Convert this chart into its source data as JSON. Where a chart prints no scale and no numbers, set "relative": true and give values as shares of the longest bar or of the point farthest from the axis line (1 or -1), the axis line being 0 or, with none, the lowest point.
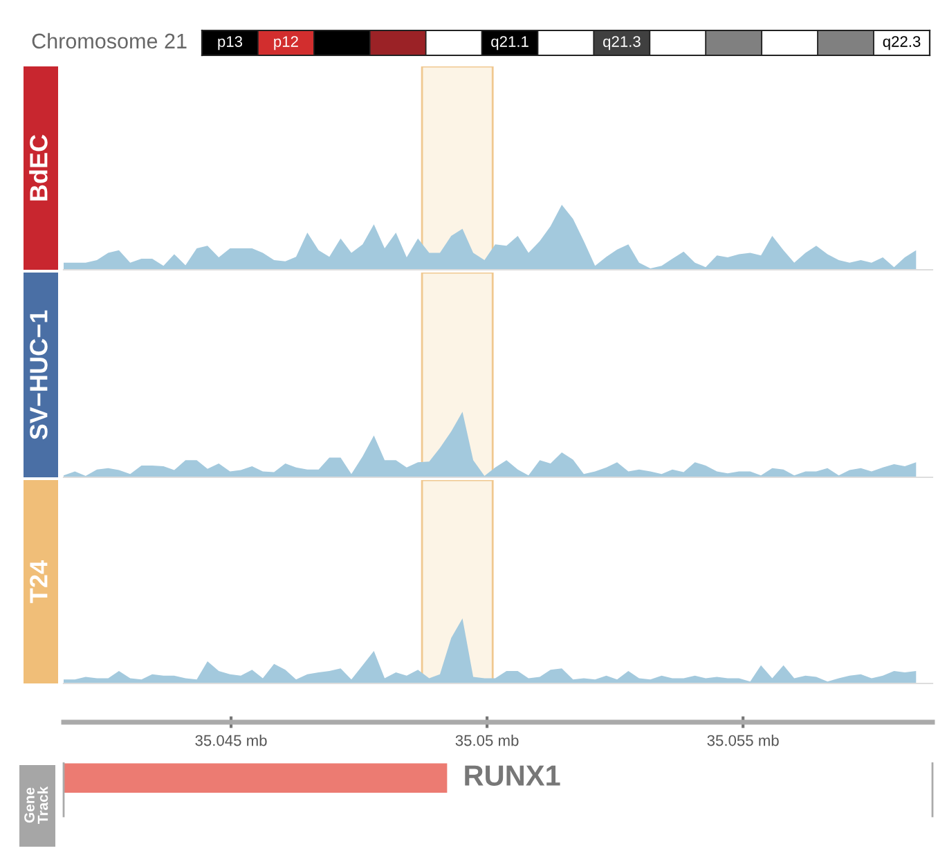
{
  "chart_data": [
    {
      "type": "other",
      "ylabel": "Chromosome 21",
      "categories": [
        "p13",
        "p12",
        null,
        null,
        null,
        "q21.1",
        null,
        "q21.3",
        null,
        null,
        null,
        null,
        "q22.3"
      ],
      "colors": [
        "#000000",
        "#d22e2e",
        "#000000",
        "#9b2226",
        "#ffffff",
        "#000000",
        "#ffffff",
        "#404040",
        "#ffffff",
        "#808080",
        "#ffffff",
        "#808080",
        "#ffffff"
      ]
    },
    {
      "type": "area",
      "relative": true,
      "tick_labels": false,
      "xlim": [
        35.04173,
        35.0587
      ],
      "x": [
        35.04173,
        35.04195,
        35.04216,
        35.04238,
        35.0426,
        35.04281,
        35.04303,
        35.04325,
        35.04346,
        35.04368,
        35.04389,
        35.04411,
        35.04433,
        35.04454,
        35.04476,
        35.04498,
        35.04519,
        35.04541,
        35.04562,
        35.04584,
        35.04606,
        35.04627,
        35.04649,
        35.04671,
        35.04692,
        35.04714,
        35.04735,
        35.04757,
        35.04779,
        35.048,
        35.04822,
        35.04843,
        35.04865,
        35.04887,
        35.04908,
        35.0493,
        35.04952,
        35.04973,
        35.04995,
        35.05016,
        35.05038,
        35.0506,
        35.05081,
        35.05103,
        35.05124,
        35.05146,
        35.05168,
        35.05189,
        35.05211,
        35.05233,
        35.05254,
        35.05276,
        35.05297,
        35.05319,
        35.05341,
        35.05362,
        35.05384,
        35.05406,
        35.05427,
        35.05449,
        35.0547,
        35.05492,
        35.05514,
        35.05535,
        35.05557,
        35.05579,
        35.056,
        35.05622,
        35.05643,
        35.05665,
        35.05687,
        35.05708,
        35.0573,
        35.05751,
        35.05773,
        35.05795,
        35.05816,
        35.05838
      ],
      "series": [
        {
          "name": "BdEC",
          "color": "#a3c9dd",
          "values": [
            0.11,
            0.11,
            0.11,
            0.15,
            0.26,
            0.3,
            0.11,
            0.17,
            0.17,
            0.06,
            0.24,
            0.07,
            0.33,
            0.37,
            0.19,
            0.33,
            0.33,
            0.33,
            0.26,
            0.15,
            0.13,
            0.2,
            0.57,
            0.3,
            0.2,
            0.48,
            0.26,
            0.39,
            0.7,
            0.33,
            0.57,
            0.19,
            0.48,
            0.26,
            0.26,
            0.52,
            0.63,
            0.26,
            0.15,
            0.39,
            0.37,
            0.52,
            0.26,
            0.44,
            0.67,
            1,
            0.78,
            0.44,
            0.06,
            0.2,
            0.31,
            0.39,
            0.11,
            0.02,
            0.06,
            0.17,
            0.28,
            0.11,
            0.04,
            0.22,
            0.19,
            0.24,
            0.26,
            0.22,
            0.52,
            0.3,
            0.11,
            0.26,
            0.37,
            0.24,
            0.15,
            0.11,
            0.15,
            0.11,
            0.19,
            0.04,
            0.19,
            0.3
          ]
        }
      ],
      "bands": [
        {
          "axis": "x",
          "from": 35.04873,
          "to": 35.05011,
          "color": "#fcf4e6"
        }
      ]
    },
    {
      "type": "area",
      "relative": true,
      "tick_labels": false,
      "xlim": [
        35.04173,
        35.0587
      ],
      "x": [
        35.04173,
        35.04195,
        35.04216,
        35.04238,
        35.0426,
        35.04281,
        35.04303,
        35.04325,
        35.04346,
        35.04368,
        35.04389,
        35.04411,
        35.04433,
        35.04454,
        35.04476,
        35.04498,
        35.04519,
        35.04541,
        35.04562,
        35.04584,
        35.04606,
        35.04627,
        35.04649,
        35.04671,
        35.04692,
        35.04714,
        35.04735,
        35.04757,
        35.04779,
        35.048,
        35.04822,
        35.04843,
        35.04865,
        35.04887,
        35.04908,
        35.0493,
        35.04952,
        35.04973,
        35.04995,
        35.05016,
        35.05038,
        35.0506,
        35.05081,
        35.05103,
        35.05124,
        35.05146,
        35.05168,
        35.05189,
        35.05211,
        35.05233,
        35.05254,
        35.05276,
        35.05297,
        35.05319,
        35.05341,
        35.05362,
        35.05384,
        35.05406,
        35.05427,
        35.05449,
        35.0547,
        35.05492,
        35.05514,
        35.05535,
        35.05557,
        35.05579,
        35.056,
        35.05622,
        35.05643,
        35.05665,
        35.05687,
        35.05708,
        35.0573,
        35.05751,
        35.05773,
        35.05795,
        35.05816,
        35.05838
      ],
      "series": [
        {
          "name": "SV−HUC−1",
          "color": "#a3c9dd",
          "values": [
            0.03,
            0.09,
            0.02,
            0.12,
            0.14,
            0.11,
            0.05,
            0.18,
            0.18,
            0.17,
            0.11,
            0.26,
            0.26,
            0.13,
            0.21,
            0.09,
            0.11,
            0.17,
            0.09,
            0.08,
            0.21,
            0.15,
            0.12,
            0.12,
            0.3,
            0.3,
            0.05,
            0.32,
            0.64,
            0.26,
            0.26,
            0.15,
            0.23,
            0.24,
            0.45,
            0.7,
            1,
            0.26,
            0.02,
            0.15,
            0.26,
            0.12,
            0.03,
            0.26,
            0.21,
            0.38,
            0.27,
            0.05,
            0.09,
            0.15,
            0.23,
            0.09,
            0.12,
            0.09,
            0.05,
            0.12,
            0.08,
            0.23,
            0.18,
            0.09,
            0.06,
            0.09,
            0.09,
            0.03,
            0.14,
            0.12,
            0.03,
            0.09,
            0.09,
            0.14,
            0.03,
            0.11,
            0.14,
            0.09,
            0.15,
            0.2,
            0.17,
            0.23
          ]
        }
      ],
      "bands": [
        {
          "axis": "x",
          "from": 35.04873,
          "to": 35.05011,
          "color": "#fcf4e6"
        }
      ]
    },
    {
      "type": "area",
      "relative": true,
      "tick_labels": false,
      "xlim": [
        35.04173,
        35.0587
      ],
      "x": [
        35.04173,
        35.04195,
        35.04216,
        35.04238,
        35.0426,
        35.04281,
        35.04303,
        35.04325,
        35.04346,
        35.04368,
        35.04389,
        35.04411,
        35.04433,
        35.04454,
        35.04476,
        35.04498,
        35.04519,
        35.04541,
        35.04562,
        35.04584,
        35.04606,
        35.04627,
        35.04649,
        35.04671,
        35.04692,
        35.04714,
        35.04735,
        35.04757,
        35.04779,
        35.048,
        35.04822,
        35.04843,
        35.04865,
        35.04887,
        35.04908,
        35.0493,
        35.04952,
        35.04973,
        35.04995,
        35.05016,
        35.05038,
        35.0506,
        35.05081,
        35.05103,
        35.05124,
        35.05146,
        35.05168,
        35.05189,
        35.05211,
        35.05233,
        35.05254,
        35.05276,
        35.05297,
        35.05319,
        35.05341,
        35.05362,
        35.05384,
        35.05406,
        35.05427,
        35.05449,
        35.0547,
        35.05492,
        35.05514,
        35.05535,
        35.05557,
        35.05579,
        35.056,
        35.05622,
        35.05643,
        35.05665,
        35.05687,
        35.05708,
        35.0573,
        35.05751,
        35.05773,
        35.05795,
        35.05816,
        35.05838
      ],
      "series": [
        {
          "name": "T24",
          "color": "#a3c9dd",
          "values": [
            0.06,
            0.06,
            0.1,
            0.08,
            0.08,
            0.19,
            0.08,
            0.06,
            0.14,
            0.12,
            0.12,
            0.08,
            0.06,
            0.34,
            0.19,
            0.14,
            0.12,
            0.21,
            0.08,
            0.3,
            0.21,
            0.06,
            0.14,
            0.17,
            0.19,
            0.23,
            0.06,
            0.28,
            0.5,
            0.08,
            0.17,
            0.12,
            0.21,
            0.08,
            0.14,
            0.7,
            1,
            0.1,
            0.08,
            0.08,
            0.19,
            0.19,
            0.08,
            0.1,
            0.21,
            0.23,
            0.06,
            0.08,
            0.06,
            0.12,
            0.06,
            0.19,
            0.08,
            0.06,
            0.12,
            0.08,
            0.08,
            0.12,
            0.08,
            0.1,
            0.08,
            0.08,
            0.03,
            0.28,
            0.08,
            0.28,
            0.08,
            0.12,
            0.1,
            0.03,
            0.08,
            0.12,
            0.14,
            0.08,
            0.12,
            0.19,
            0.17,
            0.19
          ]
        }
      ],
      "bands": [
        {
          "axis": "x",
          "from": 35.04873,
          "to": 35.05011,
          "color": "#fcf4e6"
        }
      ]
    },
    {
      "type": "bar",
      "orientation": "horizontal",
      "tick_labels": "x",
      "ylabel": "Gene Track",
      "categories": [
        null
      ],
      "xlim": [
        35.04173,
        35.0587
      ],
      "xticks": [
        {
          "value": 35.045,
          "label": "35.045 mb"
        },
        {
          "value": 35.05,
          "label": "35.05 mb"
        },
        {
          "value": 35.055,
          "label": "35.055 mb"
        }
      ],
      "base": [
        35.04173
      ],
      "values": [
        0.00749
      ],
      "color": "#ec7b72",
      "annotations": [
        "RUNX1"
      ]
    }
  ]
}
